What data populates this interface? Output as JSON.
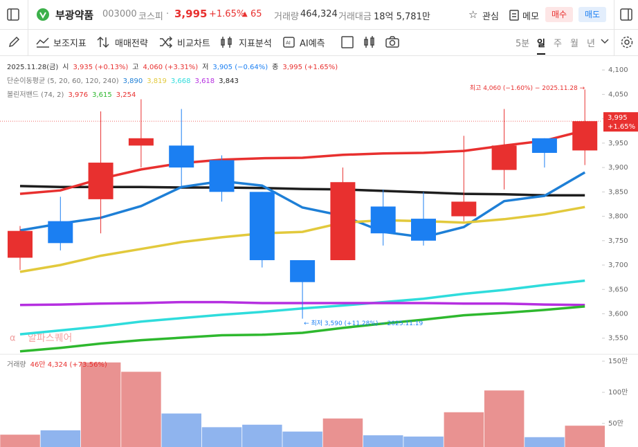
{
  "header": {
    "name": "부광약품",
    "code": "003000",
    "market": "코스피",
    "price": "3,995",
    "change_rate": "+1.65%",
    "change": "65",
    "volume_label": "거래량",
    "volume": "464,324",
    "amount_label": "거래대금",
    "amount": "18억 5,781만",
    "watch": "관심",
    "memo": "메모",
    "buy": "매수",
    "sell": "매도"
  },
  "toolbar": {
    "indicators": "보조지표",
    "strategy": "매매전략",
    "compare": "비교차트",
    "analysis": "지표분석",
    "ai": "AI예측",
    "periods": [
      "5분",
      "일",
      "주",
      "월",
      "년"
    ]
  },
  "chart_data": {
    "type": "candlestick",
    "ylim": [
      3517,
      4130
    ],
    "yticks": [
      {
        "value": 4100,
        "label": "4,100"
      },
      {
        "value": 4050,
        "label": "4,050"
      },
      {
        "value": 4000,
        "label": "4,000"
      },
      {
        "value": 3950,
        "label": "3,950"
      },
      {
        "value": 3900,
        "label": "3,900"
      },
      {
        "value": 3850,
        "label": "3,850"
      },
      {
        "value": 3800,
        "label": "3,800"
      },
      {
        "value": 3750,
        "label": "3,750"
      },
      {
        "value": 3700,
        "label": "3,700"
      },
      {
        "value": 3650,
        "label": "3,650"
      },
      {
        "value": 3600,
        "label": "3,600"
      },
      {
        "value": 3550,
        "label": "3,550"
      }
    ],
    "grid": false,
    "up_color": "#e8302f",
    "down_color": "#1b7ff2",
    "open": [
      3715,
      3790,
      3835,
      3945,
      3945,
      3915,
      3850,
      3710,
      3710,
      3820,
      3795,
      3800,
      3895,
      3960,
      3935
    ],
    "high": [
      3780,
      3840,
      4015,
      4040,
      4020,
      3925,
      3850,
      3710,
      3900,
      3855,
      3850,
      3965,
      4020,
      3960,
      4060
    ],
    "low": [
      3690,
      3730,
      3765,
      3900,
      3860,
      3830,
      3695,
      3590,
      3710,
      3740,
      3740,
      3790,
      3855,
      3900,
      3905
    ],
    "close": [
      3770,
      3745,
      3910,
      3960,
      3900,
      3850,
      3710,
      3665,
      3870,
      3765,
      3750,
      3830,
      3945,
      3930,
      3995
    ],
    "info": {
      "date": "2025.11.28(금)",
      "items": [
        {
          "name": "시",
          "text": "3,935 (+0.13%)",
          "color": "#e8302f"
        },
        {
          "name": "고",
          "text": "4,060 (+3.31%)",
          "color": "#e8302f"
        },
        {
          "name": "저",
          "text": "3,905 (−0.64%)",
          "color": "#1b7ff2"
        },
        {
          "name": "종",
          "text": "3,995 (+1.65%)",
          "color": "#e8302f"
        }
      ]
    },
    "ma": {
      "title": "단순이동평균 (5, 20, 60, 120, 240)",
      "series": [
        {
          "color": "#1e7fd6",
          "value_label": "3,890",
          "values": [
            3771,
            3785,
            3797,
            3821,
            3860,
            3872,
            3863,
            3818,
            3801,
            3768,
            3757,
            3778,
            3831,
            3842,
            3890
          ]
        },
        {
          "color": "#e2c93c",
          "value_label": "3,819",
          "values": [
            3686,
            3700,
            3719,
            3733,
            3747,
            3757,
            3765,
            3768,
            3787,
            3792,
            3790,
            3787,
            3794,
            3804,
            3819
          ]
        },
        {
          "color": "#2fdcdc",
          "value_label": "3,668",
          "values": [
            3558,
            3566,
            3574,
            3584,
            3591,
            3598,
            3604,
            3611,
            3617,
            3624,
            3631,
            3641,
            3649,
            3659,
            3668
          ]
        },
        {
          "color": "#b52fe0",
          "value_label": "3,618",
          "values": [
            3618,
            3619,
            3621,
            3622,
            3624,
            3624,
            3622,
            3622,
            3622,
            3622,
            3622,
            3621,
            3621,
            3619,
            3618
          ]
        },
        {
          "color": "#1e1e1e",
          "value_label": "3,843",
          "values": [
            3862,
            3860,
            3860,
            3860,
            3859,
            3859,
            3858,
            3856,
            3855,
            3852,
            3849,
            3846,
            3845,
            3843,
            3843
          ]
        }
      ]
    },
    "bollinger": {
      "title": "볼린저밴드 (74, 2)",
      "series": [
        {
          "color": "#e8302f",
          "value_label": "3,976",
          "values": [
            3846,
            3853,
            3877,
            3896,
            3909,
            3916,
            3919,
            3920,
            3926,
            3929,
            3930,
            3934,
            3945,
            3955,
            3976
          ]
        },
        {
          "color": "#2eb82e",
          "value_label": "3,615",
          "values": [
            3523,
            3530,
            3539,
            3546,
            3551,
            3556,
            3557,
            3561,
            3571,
            3580,
            3588,
            3597,
            3602,
            3608,
            3615
          ]
        }
      ],
      "lower_label": "3,254",
      "lower_color": "#e8302f"
    },
    "current": {
      "value": 3995,
      "label": "3,995",
      "change": "+1.65%"
    },
    "high_note": "최고 4,060 (−1.60%) − 2025.11.28 →",
    "low_note": "← 최저 3,590 (+11.28%) − 2025.11.19",
    "watermark": "알파스퀘어",
    "volume": {
      "title": "거래량",
      "label": "46만 4,324 (+73.56%)",
      "ylim": [
        122000,
        1611000
      ],
      "yticks": [
        {
          "value": 1500000,
          "label": "150만"
        },
        {
          "value": 1000000,
          "label": "100만"
        },
        {
          "value": 500000,
          "label": "50만"
        }
      ],
      "up_color": "#e99291",
      "down_color": "#8fb4ee",
      "values": [
        320000,
        390000,
        1480000,
        1330000,
        660000,
        440000,
        480000,
        370000,
        580000,
        310000,
        290000,
        680000,
        1030000,
        280000,
        464324
      ]
    }
  }
}
